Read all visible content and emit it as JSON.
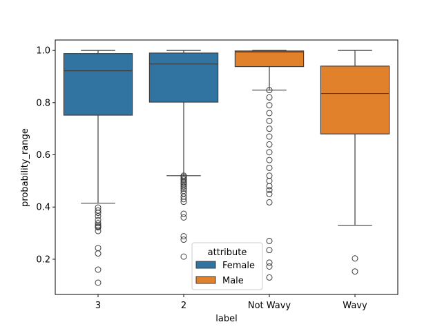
{
  "chart_data": {
    "type": "box",
    "xlabel": "label",
    "ylabel": "probability_range",
    "ylim": [
      0.065,
      1.04
    ],
    "yticks": [
      0.2,
      0.4,
      0.6,
      0.8,
      1.0
    ],
    "ytick_labels": [
      "0.2",
      "0.4",
      "0.6",
      "0.8",
      "1.0"
    ],
    "categories": [
      "3",
      "2",
      "Not Wavy",
      "Wavy"
    ],
    "legend": {
      "title": "attribute",
      "placement": "lower-center",
      "entries": [
        {
          "name": "Female",
          "color": "#3274a1"
        },
        {
          "name": "Male",
          "color": "#e1812c"
        }
      ]
    },
    "boxes": [
      {
        "category": "3",
        "group": "Female",
        "color": "#3274a1",
        "whisker_low": 0.415,
        "q1": 0.752,
        "median": 0.922,
        "q3": 0.988,
        "whisker_high": 1.0,
        "outliers": [
          0.398,
          0.387,
          0.378,
          0.365,
          0.35,
          0.338,
          0.33,
          0.325,
          0.322,
          0.308,
          0.243,
          0.222,
          0.16,
          0.11
        ]
      },
      {
        "category": "2",
        "group": "Female",
        "color": "#3274a1",
        "whisker_low": 0.52,
        "q1": 0.802,
        "median": 0.948,
        "q3": 0.99,
        "whisker_high": 1.0,
        "outliers": [
          0.52,
          0.515,
          0.51,
          0.505,
          0.5,
          0.495,
          0.49,
          0.485,
          0.478,
          0.47,
          0.462,
          0.452,
          0.44,
          0.43,
          0.42,
          0.374,
          0.36,
          0.288,
          0.275,
          0.21
        ]
      },
      {
        "category": "Not Wavy",
        "group": "Male",
        "color": "#e1812c",
        "whisker_low": 0.848,
        "q1": 0.938,
        "median": 0.994,
        "q3": 0.998,
        "whisker_high": 1.0,
        "outliers": [
          0.848,
          0.82,
          0.79,
          0.76,
          0.73,
          0.7,
          0.67,
          0.64,
          0.61,
          0.58,
          0.55,
          0.52,
          0.5,
          0.48,
          0.465,
          0.45,
          0.418,
          0.27,
          0.235,
          0.187,
          0.172,
          0.13
        ]
      },
      {
        "category": "Wavy",
        "group": "Male",
        "color": "#e1812c",
        "whisker_low": 0.33,
        "q1": 0.68,
        "median": 0.835,
        "q3": 0.94,
        "whisker_high": 1.0,
        "outliers": [
          0.203,
          0.153
        ]
      }
    ]
  }
}
